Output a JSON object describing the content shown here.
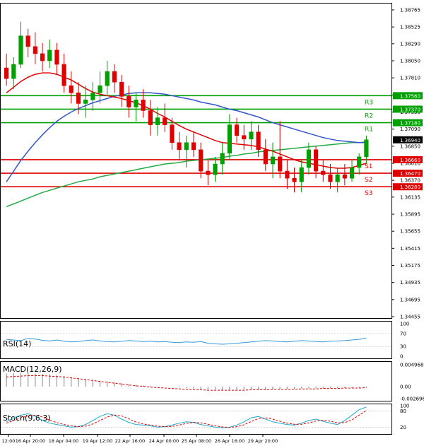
{
  "colors": {
    "bull": "#00a000",
    "bear": "#e00000",
    "ma_fast": "#e00000",
    "ma_mid": "#3355cc",
    "ma_slow": "#22aa44",
    "support": "#e00000",
    "resistance": "#00a000",
    "rsi": "#3399dd",
    "macd_signal": "#e00000",
    "macd_hist": "#999999",
    "stoch_k": "#22aacc",
    "stoch_d": "#e00000"
  },
  "chart_data": [
    {
      "type": "candlestick",
      "panel": "main",
      "yticks": [
        "1.38765",
        "1.38525",
        "1.38290",
        "1.38050",
        "1.37810",
        "1.37570",
        "1.37330",
        "1.37090",
        "1.36850",
        "1.36610",
        "1.36370",
        "1.36135",
        "1.35895",
        "1.35655",
        "1.35415",
        "1.35175",
        "1.34935",
        "1.34695",
        "1.34455"
      ],
      "ylim": [
        1.34455,
        1.38765
      ],
      "x_ticks": [
        "12:00",
        "16 Apr 20:00",
        "18 Apr 04:00",
        "19 Apr 12:00",
        "22 Apr 16:00",
        "24 Apr 00:00",
        "25 Apr 08:00",
        "26 Apr 16:00",
        "29 Apr 20:00"
      ],
      "candles": [
        [
          1.3795,
          1.3815,
          1.377,
          1.378
        ],
        [
          1.378,
          1.381,
          1.3765,
          1.38
        ],
        [
          1.38,
          1.386,
          1.3795,
          1.384
        ],
        [
          1.384,
          1.385,
          1.381,
          1.3825
        ],
        [
          1.3825,
          1.3845,
          1.38,
          1.3815
        ],
        [
          1.3815,
          1.383,
          1.379,
          1.3805
        ],
        [
          1.3805,
          1.3835,
          1.3795,
          1.382
        ],
        [
          1.382,
          1.383,
          1.3785,
          1.38
        ],
        [
          1.38,
          1.3815,
          1.376,
          1.377
        ],
        [
          1.377,
          1.379,
          1.3745,
          1.376
        ],
        [
          1.376,
          1.3775,
          1.373,
          1.3745
        ],
        [
          1.3745,
          1.377,
          1.3725,
          1.375
        ],
        [
          1.375,
          1.3775,
          1.3735,
          1.376
        ],
        [
          1.376,
          1.379,
          1.3745,
          1.377
        ],
        [
          1.377,
          1.3805,
          1.3755,
          1.379
        ],
        [
          1.379,
          1.38,
          1.376,
          1.3775
        ],
        [
          1.3775,
          1.3785,
          1.374,
          1.3755
        ],
        [
          1.3755,
          1.377,
          1.3725,
          1.374
        ],
        [
          1.374,
          1.376,
          1.372,
          1.375
        ],
        [
          1.375,
          1.3765,
          1.3725,
          1.3735
        ],
        [
          1.3735,
          1.375,
          1.37,
          1.3715
        ],
        [
          1.3715,
          1.374,
          1.37,
          1.3725
        ],
        [
          1.3725,
          1.3745,
          1.3705,
          1.3715
        ],
        [
          1.3715,
          1.3725,
          1.368,
          1.369
        ],
        [
          1.369,
          1.3705,
          1.3665,
          1.368
        ],
        [
          1.368,
          1.37,
          1.3655,
          1.369
        ],
        [
          1.369,
          1.3705,
          1.367,
          1.368
        ],
        [
          1.368,
          1.369,
          1.364,
          1.365
        ],
        [
          1.365,
          1.3665,
          1.363,
          1.3645
        ],
        [
          1.3645,
          1.367,
          1.3635,
          1.366
        ],
        [
          1.366,
          1.369,
          1.3645,
          1.3675
        ],
        [
          1.3675,
          1.373,
          1.3665,
          1.3715
        ],
        [
          1.3715,
          1.3725,
          1.369,
          1.37
        ],
        [
          1.37,
          1.3715,
          1.368,
          1.3695
        ],
        [
          1.3695,
          1.372,
          1.368,
          1.3705
        ],
        [
          1.3705,
          1.3715,
          1.367,
          1.368
        ],
        [
          1.368,
          1.3695,
          1.365,
          1.366
        ],
        [
          1.366,
          1.369,
          1.364,
          1.367
        ],
        [
          1.367,
          1.372,
          1.364,
          1.365
        ],
        [
          1.365,
          1.3665,
          1.3625,
          1.364
        ],
        [
          1.364,
          1.3655,
          1.362,
          1.3635
        ],
        [
          1.3635,
          1.3665,
          1.362,
          1.3655
        ],
        [
          1.3655,
          1.369,
          1.3645,
          1.368
        ],
        [
          1.368,
          1.3685,
          1.364,
          1.365
        ],
        [
          1.365,
          1.3665,
          1.3635,
          1.3645
        ],
        [
          1.3645,
          1.366,
          1.3625,
          1.3635
        ],
        [
          1.3635,
          1.3655,
          1.362,
          1.3645
        ],
        [
          1.3645,
          1.366,
          1.363,
          1.364
        ],
        [
          1.364,
          1.3665,
          1.3635,
          1.3655
        ],
        [
          1.3655,
          1.3675,
          1.3645,
          1.367
        ],
        [
          1.367,
          1.37,
          1.366,
          1.3694
        ]
      ],
      "ma_fast": [
        1.376,
        1.3768,
        1.3776,
        1.3782,
        1.3786,
        1.3788,
        1.3788,
        1.3786,
        1.3782,
        1.3778,
        1.3772,
        1.3766,
        1.3761,
        1.3758,
        1.3756,
        1.3754,
        1.3752,
        1.3749,
        1.3746,
        1.3742,
        1.3737,
        1.3731,
        1.3726,
        1.372,
        1.3714,
        1.3709,
        1.3705,
        1.3701,
        1.3697,
        1.3693,
        1.369,
        1.3689,
        1.3688,
        1.3687,
        1.3686,
        1.3684,
        1.3681,
        1.3678,
        1.3674,
        1.367,
        1.3666,
        1.3663,
        1.3661,
        1.3659,
        1.3657,
        1.3655,
        1.3654,
        1.3654,
        1.3655,
        1.3658,
        1.3661
      ],
      "ma_mid": [
        1.3635,
        1.365,
        1.3665,
        1.3678,
        1.369,
        1.3701,
        1.3711,
        1.372,
        1.3727,
        1.3733,
        1.3738,
        1.3742,
        1.3746,
        1.3749,
        1.3752,
        1.3755,
        1.3757,
        1.3759,
        1.376,
        1.376,
        1.376,
        1.3759,
        1.3758,
        1.3756,
        1.3754,
        1.3752,
        1.375,
        1.3747,
        1.3745,
        1.3743,
        1.374,
        1.3737,
        1.3735,
        1.3732,
        1.3729,
        1.3726,
        1.3722,
        1.3718,
        1.3715,
        1.3712,
        1.3709,
        1.3706,
        1.3703,
        1.37,
        1.3697,
        1.3695,
        1.3693,
        1.3692,
        1.3691,
        1.369,
        1.369
      ],
      "ma_slow": [
        1.36,
        1.3604,
        1.3608,
        1.3612,
        1.3616,
        1.362,
        1.3623,
        1.3626,
        1.3629,
        1.3632,
        1.3635,
        1.3637,
        1.3639,
        1.3642,
        1.3644,
        1.3646,
        1.3648,
        1.365,
        1.3652,
        1.3654,
        1.3656,
        1.3658,
        1.366,
        1.3661,
        1.3662,
        1.3664,
        1.3665,
        1.3666,
        1.3667,
        1.3668,
        1.3669,
        1.3671,
        1.3672,
        1.3674,
        1.3675,
        1.3677,
        1.3678,
        1.3679,
        1.368,
        1.3681,
        1.3682,
        1.3683,
        1.3684,
        1.3685,
        1.3686,
        1.3687,
        1.3688,
        1.3689,
        1.369,
        1.369,
        1.3691
      ],
      "levels": [
        {
          "label": "R3",
          "value": "1.37560",
          "kind": "resistance",
          "v": 1.3756
        },
        {
          "label": "R2",
          "value": "1.37370",
          "kind": "resistance",
          "v": 1.3737
        },
        {
          "label": "R1",
          "value": "1.37180",
          "kind": "resistance",
          "v": 1.3718
        },
        {
          "label": "S1",
          "value": "1.36660",
          "kind": "support",
          "v": 1.3666
        },
        {
          "label": "S2",
          "value": "1.36470",
          "kind": "support",
          "v": 1.3647
        },
        {
          "label": "S3",
          "value": "1.36280",
          "kind": "support",
          "v": 1.3628
        }
      ],
      "current_price": "1.36940"
    },
    {
      "type": "line",
      "panel": "rsi",
      "title": "RSI(14)",
      "yticks": [
        "100",
        "70",
        "30",
        "0"
      ],
      "ylim": [
        0,
        100
      ],
      "values": [
        52,
        50,
        48,
        55,
        53,
        49,
        47,
        50,
        46,
        44,
        45,
        48,
        50,
        47,
        45,
        44,
        46,
        48,
        47,
        45,
        46,
        44,
        45,
        43,
        42,
        44,
        43,
        45,
        40,
        38,
        37,
        38,
        40,
        42,
        44,
        46,
        48,
        47,
        45,
        44,
        46,
        48,
        47,
        45,
        44,
        46,
        47,
        48,
        50,
        52,
        56
      ]
    },
    {
      "type": "bar",
      "panel": "macd",
      "title": "MACD(12,26,9)",
      "yticks": [
        "0.004968",
        "0.00",
        "-0.002696"
      ],
      "ylim": [
        -0.002696,
        0.004968
      ],
      "hist": [
        0.003,
        0.0031,
        0.0032,
        0.0031,
        0.003,
        0.0029,
        0.0028,
        0.0026,
        0.0024,
        0.0022,
        0.002,
        0.0018,
        0.0016,
        0.0014,
        0.0012,
        0.001,
        0.0008,
        0.0006,
        0.0005,
        0.0003,
        0.0002,
        0.0001,
        0.0,
        -0.0001,
        -0.0002,
        -0.0003,
        -0.0004,
        -0.0005,
        -0.0006,
        -0.0006,
        -0.0007,
        -0.0007,
        -0.0007,
        -0.0006,
        -0.0006,
        -0.0006,
        -0.0006,
        -0.0005,
        -0.0005,
        -0.0005,
        -0.0005,
        -0.0004,
        -0.0004,
        -0.0004,
        -0.0004,
        -0.0003,
        -0.0003,
        -0.0003,
        -0.0003,
        -0.0002,
        -0.0002
      ],
      "signal": [
        0.0022,
        0.0023,
        0.0024,
        0.0025,
        0.0025,
        0.0025,
        0.0024,
        0.0023,
        0.0022,
        0.002,
        0.0018,
        0.0016,
        0.0014,
        0.0012,
        0.001,
        0.0008,
        0.0006,
        0.0004,
        0.0002,
        0.0001,
        -0.0001,
        -0.0002,
        -0.0003,
        -0.0004,
        -0.0005,
        -0.0006,
        -0.0007,
        -0.0007,
        -0.0008,
        -0.0008,
        -0.0008,
        -0.0008,
        -0.0008,
        -0.0008,
        -0.0007,
        -0.0007,
        -0.0007,
        -0.0006,
        -0.0006,
        -0.0006,
        -0.0006,
        -0.0005,
        -0.0005,
        -0.0005,
        -0.0004,
        -0.0004,
        -0.0004,
        -0.0003,
        -0.0003,
        -0.0003,
        -0.0002
      ]
    },
    {
      "type": "line",
      "panel": "stoch",
      "title": "Stoch(9,6,3)",
      "yticks": [
        "100",
        "80",
        "20"
      ],
      "ylim": [
        0,
        100
      ],
      "k": [
        40,
        55,
        65,
        70,
        60,
        45,
        35,
        30,
        25,
        20,
        22,
        30,
        45,
        60,
        70,
        65,
        50,
        38,
        30,
        28,
        25,
        20,
        22,
        28,
        35,
        40,
        38,
        30,
        25,
        20,
        18,
        20,
        28,
        40,
        55,
        60,
        50,
        40,
        35,
        30,
        28,
        35,
        45,
        50,
        42,
        35,
        30,
        45,
        65,
        85,
        95
      ],
      "d": [
        35,
        45,
        55,
        62,
        65,
        58,
        46,
        37,
        30,
        25,
        22,
        24,
        32,
        45,
        58,
        65,
        62,
        51,
        39,
        32,
        28,
        24,
        22,
        23,
        28,
        34,
        38,
        36,
        31,
        25,
        21,
        19,
        22,
        29,
        41,
        52,
        55,
        50,
        42,
        35,
        31,
        31,
        36,
        43,
        46,
        42,
        36,
        37,
        47,
        65,
        82
      ]
    }
  ]
}
